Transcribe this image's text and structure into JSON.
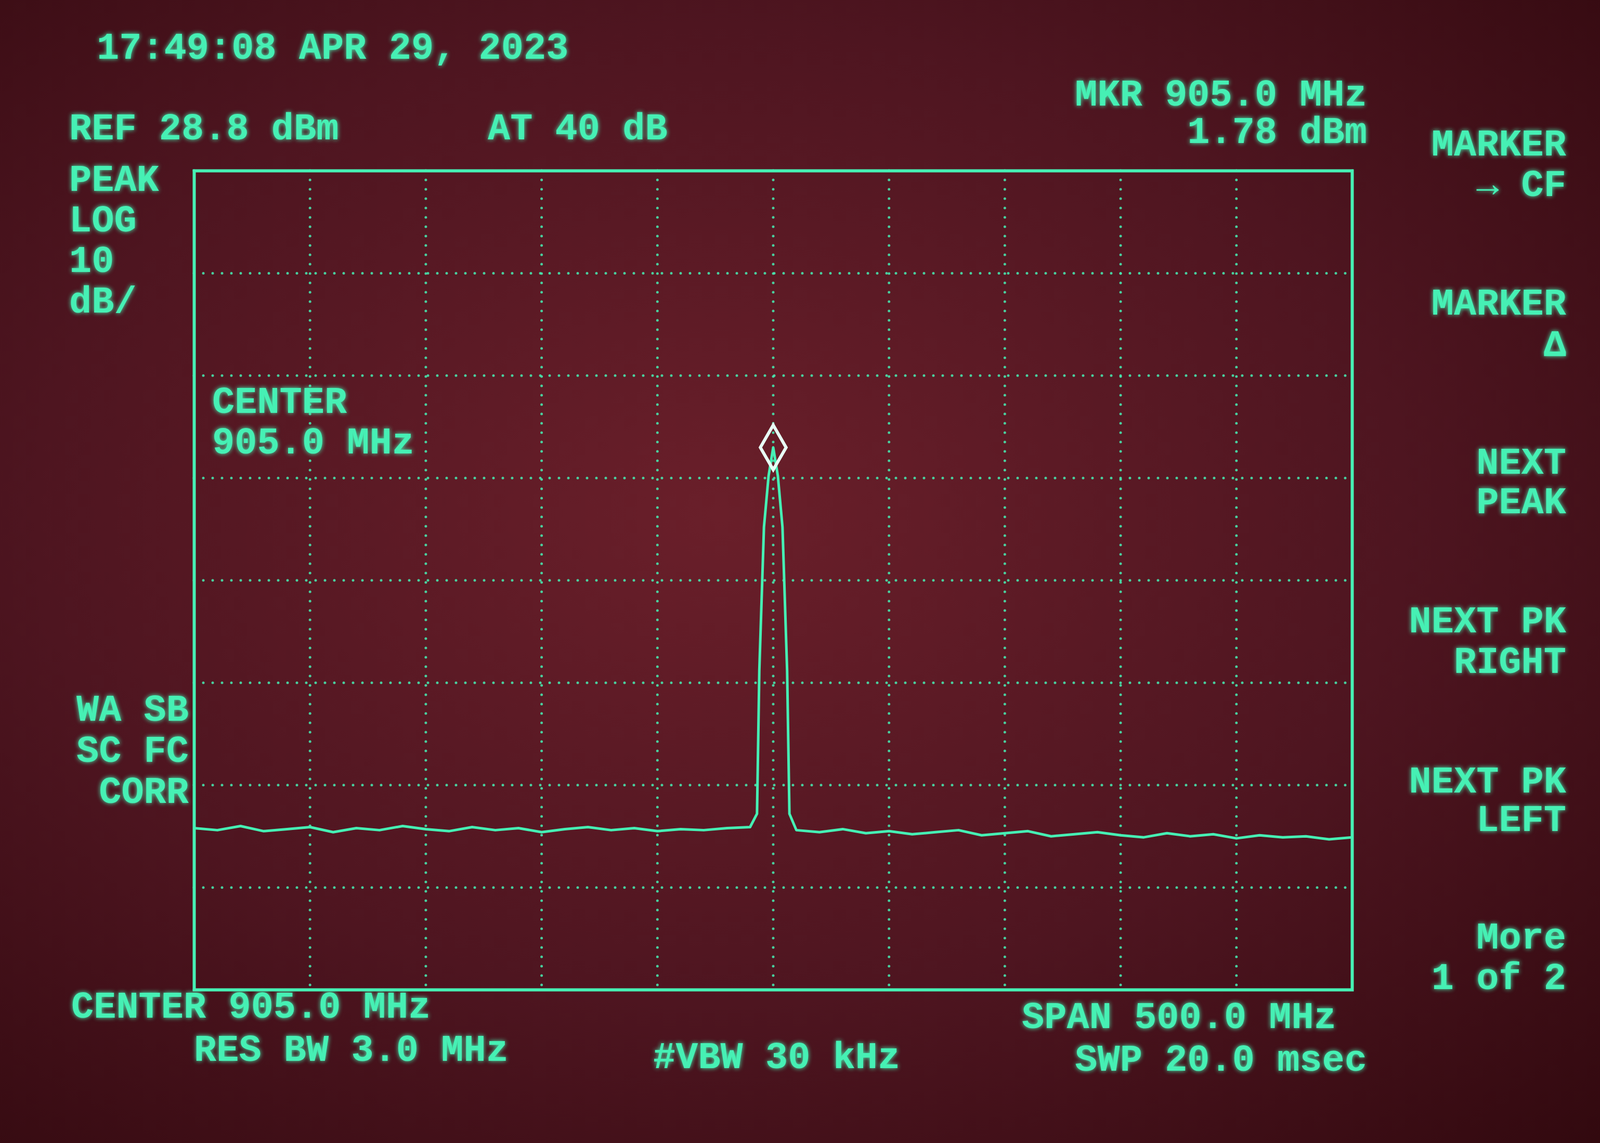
{
  "chart_data": {
    "type": "line",
    "x": [
      655,
      665,
      675,
      685,
      695,
      705,
      715,
      725,
      735,
      745,
      755,
      765,
      775,
      785,
      795,
      805,
      815,
      825,
      835,
      845,
      855,
      865,
      875,
      885,
      895,
      898,
      899,
      901,
      903,
      905,
      907,
      909,
      911,
      912,
      915,
      925,
      935,
      945,
      955,
      965,
      975,
      985,
      995,
      1005,
      1015,
      1025,
      1035,
      1045,
      1055,
      1065,
      1075,
      1085,
      1095,
      1105,
      1115,
      1125,
      1135,
      1145,
      1155
    ],
    "values": [
      -35.4,
      -35.6,
      -35.2,
      -35.7,
      -35.5,
      -35.3,
      -35.8,
      -35.4,
      -35.6,
      -35.2,
      -35.5,
      -35.7,
      -35.3,
      -35.6,
      -35.4,
      -35.8,
      -35.5,
      -35.3,
      -35.6,
      -35.4,
      -35.7,
      -35.5,
      -35.6,
      -35.4,
      -35.3,
      -34,
      -20,
      -6,
      -1,
      1.78,
      -1,
      -6,
      -20,
      -34,
      -35.6,
      -35.8,
      -35.5,
      -35.9,
      -35.7,
      -36.0,
      -35.8,
      -35.6,
      -36.1,
      -35.9,
      -35.7,
      -36.2,
      -36.0,
      -35.8,
      -36.1,
      -36.3,
      -35.9,
      -36.2,
      -36.0,
      -36.4,
      -36.1,
      -36.3,
      -36.2,
      -36.5,
      -36.3
    ],
    "color": "#46f0b4",
    "xlim": [
      655,
      1155
    ],
    "ylim": [
      -51.2,
      28.8
    ],
    "xticks": [
      655,
      705,
      755,
      805,
      855,
      905,
      955,
      1005,
      1055,
      1105,
      1155
    ],
    "yticks": [
      28.8,
      18.8,
      8.8,
      -1.2,
      -11.2,
      -21.2,
      -31.2,
      -41.2,
      -51.2
    ],
    "grid": true,
    "tick_labels": false,
    "annotations": [
      [
        "17:49:08 APR 29, 2023"
      ],
      [
        "REF 28.8 dBm"
      ],
      [
        "AT 40 dB"
      ],
      [
        "MKR 905.0 MHz",
        "1.78 dBm"
      ],
      [
        "PEAK",
        "LOG",
        "10",
        "dB/"
      ],
      [
        "CENTER",
        "905.0 MHz"
      ],
      [
        "WA SB",
        "SC FC",
        "CORR"
      ],
      [
        "CENTER 905.0 MHz"
      ],
      [
        "RES BW 3.0 MHz"
      ],
      [
        "#VBW 30 kHz"
      ],
      [
        "SPAN 500.0 MHz"
      ],
      [
        "SWP 20.0 msec"
      ],
      [
        "MARKER",
        "→ CF"
      ],
      [
        "MARKER",
        "Δ"
      ],
      [
        "NEXT",
        "PEAK"
      ],
      [
        "NEXT PK",
        "RIGHT"
      ],
      [
        "NEXT PK",
        "LEFT"
      ],
      [
        "More",
        "1 of 2"
      ]
    ]
  }
}
